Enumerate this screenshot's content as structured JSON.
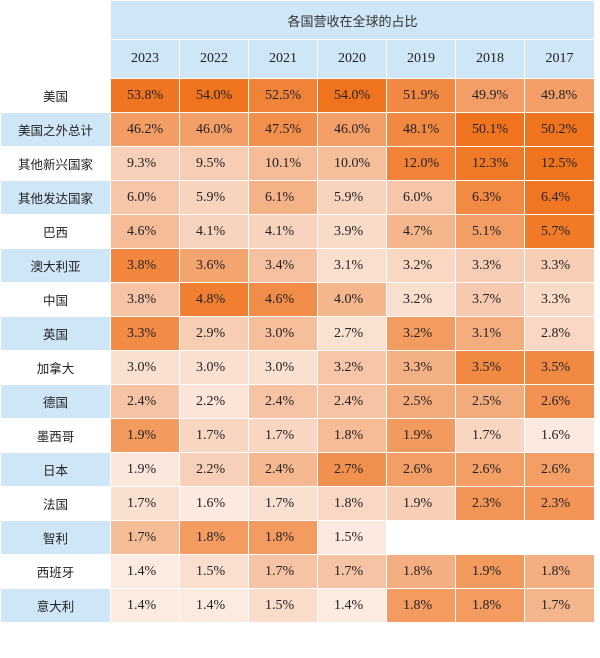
{
  "chart_data": {
    "type": "table",
    "title": "各国营收在全球的占比",
    "columns": [
      "2023",
      "2022",
      "2021",
      "2020",
      "2019",
      "2018",
      "2017"
    ],
    "rows": [
      {
        "label": "美国",
        "values": [
          "53.8%",
          "54.0%",
          "52.5%",
          "54.0%",
          "51.9%",
          "49.9%",
          "49.8%"
        ]
      },
      {
        "label": "美国之外总计",
        "values": [
          "46.2%",
          "46.0%",
          "47.5%",
          "46.0%",
          "48.1%",
          "50.1%",
          "50.2%"
        ]
      },
      {
        "label": "其他新兴国家",
        "values": [
          "9.3%",
          "9.5%",
          "10.1%",
          "10.0%",
          "12.0%",
          "12.3%",
          "12.5%"
        ]
      },
      {
        "label": "其他发达国家",
        "values": [
          "6.0%",
          "5.9%",
          "6.1%",
          "5.9%",
          "6.0%",
          "6.3%",
          "6.4%"
        ]
      },
      {
        "label": "巴西",
        "values": [
          "4.6%",
          "4.1%",
          "4.1%",
          "3.9%",
          "4.7%",
          "5.1%",
          "5.7%"
        ]
      },
      {
        "label": "澳大利亚",
        "values": [
          "3.8%",
          "3.6%",
          "3.4%",
          "3.1%",
          "3.2%",
          "3.3%",
          "3.3%"
        ]
      },
      {
        "label": "中国",
        "values": [
          "3.8%",
          "4.8%",
          "4.6%",
          "4.0%",
          "3.2%",
          "3.7%",
          "3.3%"
        ]
      },
      {
        "label": "英国",
        "values": [
          "3.3%",
          "2.9%",
          "3.0%",
          "2.7%",
          "3.2%",
          "3.1%",
          "2.8%"
        ]
      },
      {
        "label": "加拿大",
        "values": [
          "3.0%",
          "3.0%",
          "3.0%",
          "3.2%",
          "3.3%",
          "3.5%",
          "3.5%"
        ]
      },
      {
        "label": "德国",
        "values": [
          "2.4%",
          "2.2%",
          "2.4%",
          "2.4%",
          "2.5%",
          "2.5%",
          "2.6%"
        ]
      },
      {
        "label": "墨西哥",
        "values": [
          "1.9%",
          "1.7%",
          "1.7%",
          "1.8%",
          "1.9%",
          "1.7%",
          "1.6%"
        ]
      },
      {
        "label": "日本",
        "values": [
          "1.9%",
          "2.2%",
          "2.4%",
          "2.7%",
          "2.6%",
          "2.6%",
          "2.6%"
        ]
      },
      {
        "label": "法国",
        "values": [
          "1.7%",
          "1.6%",
          "1.7%",
          "1.8%",
          "1.9%",
          "2.3%",
          "2.3%"
        ]
      },
      {
        "label": "智利",
        "values": [
          "1.7%",
          "1.8%",
          "1.8%",
          "1.5%",
          "",
          "",
          ""
        ]
      },
      {
        "label": "西班牙",
        "values": [
          "1.4%",
          "1.5%",
          "1.7%",
          "1.7%",
          "1.8%",
          "1.9%",
          "1.8%"
        ]
      },
      {
        "label": "意大利",
        "values": [
          "1.4%",
          "1.4%",
          "1.5%",
          "1.4%",
          "1.8%",
          "1.8%",
          "1.7%"
        ]
      }
    ],
    "colors": {
      "header_bg": "#cfe6f7",
      "heat_low": "#ffffff",
      "heat_mid": "#f7cbb1",
      "heat_high": "#f0731e"
    }
  }
}
